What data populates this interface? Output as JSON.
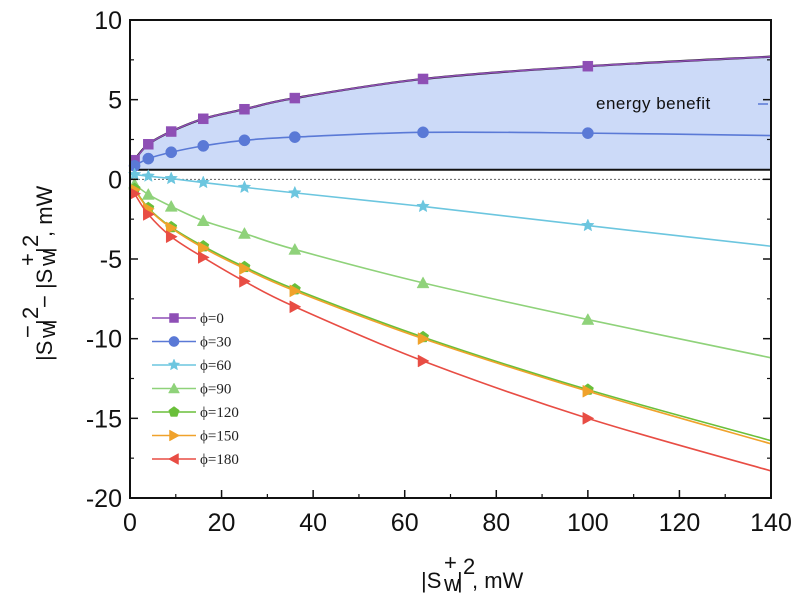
{
  "chart_data": {
    "type": "line",
    "title": "",
    "xlabel": "|S_w^+|^2, mW",
    "ylabel": "|S_w^-|^2 - |S_w^+|^2, mW",
    "xlim": [
      0,
      140
    ],
    "ylim": [
      -20,
      10
    ],
    "x_ticks": [
      0,
      20,
      40,
      60,
      80,
      100,
      120,
      140
    ],
    "y_ticks": [
      -20,
      -15,
      -10,
      -5,
      0,
      5,
      10
    ],
    "x_tick_labels": [
      "0",
      "20",
      "40",
      "60",
      "80",
      "100",
      "120",
      "140"
    ],
    "y_tick_labels": [
      "-20",
      "-15",
      "-10",
      "-5",
      "0",
      "5",
      "10"
    ],
    "grid": false,
    "legend_position": "lower-left",
    "annotation": "energy benefit",
    "shaded_region": {
      "label": "energy benefit",
      "color": "#ccdaf8",
      "baseline": 0.6
    },
    "series": [
      {
        "name": "ϕ=0",
        "color": "#8e4fb5",
        "marker": "square",
        "x": [
          1,
          4,
          9,
          16,
          25,
          36,
          64,
          100,
          140
        ],
        "y": [
          1.2,
          2.2,
          3.0,
          3.8,
          4.4,
          5.1,
          6.3,
          7.1,
          7.7
        ],
        "marker_x": [
          1,
          4,
          9,
          16,
          25,
          36,
          64,
          100
        ]
      },
      {
        "name": "ϕ=30",
        "color": "#5a79d6",
        "marker": "circle",
        "x": [
          1,
          4,
          9,
          16,
          25,
          36,
          64,
          100,
          140
        ],
        "y": [
          0.85,
          1.3,
          1.7,
          2.1,
          2.45,
          2.65,
          2.95,
          2.9,
          2.75
        ],
        "marker_x": [
          1,
          4,
          9,
          16,
          25,
          36,
          64,
          100
        ]
      },
      {
        "name": "ϕ=60",
        "color": "#6cc6df",
        "marker": "star",
        "x": [
          1,
          4,
          9,
          16,
          25,
          36,
          64,
          100,
          140
        ],
        "y": [
          0.3,
          0.2,
          0.05,
          -0.2,
          -0.5,
          -0.85,
          -1.7,
          -2.9,
          -4.2
        ],
        "marker_x": [
          1,
          4,
          9,
          16,
          25,
          36,
          64,
          100
        ]
      },
      {
        "name": "ϕ=90",
        "color": "#8fd27a",
        "marker": "triangle-up",
        "x": [
          1,
          4,
          9,
          16,
          25,
          36,
          64,
          100,
          140
        ],
        "y": [
          -0.3,
          -0.95,
          -1.7,
          -2.6,
          -3.4,
          -4.4,
          -6.5,
          -8.8,
          -11.2
        ],
        "marker_x": [
          1,
          4,
          9,
          16,
          25,
          36,
          64,
          100
        ]
      },
      {
        "name": "ϕ=120",
        "color": "#6abf3a",
        "marker": "pentagon",
        "x": [
          1,
          4,
          9,
          16,
          25,
          36,
          64,
          100,
          140
        ],
        "y": [
          -0.6,
          -1.8,
          -3.0,
          -4.2,
          -5.5,
          -6.9,
          -9.9,
          -13.2,
          -16.4
        ],
        "marker_x": [
          1,
          4,
          9,
          16,
          25,
          36,
          64,
          100
        ]
      },
      {
        "name": "ϕ=150",
        "color": "#f0a22b",
        "marker": "triangle-right",
        "x": [
          1,
          4,
          9,
          16,
          25,
          36,
          64,
          100,
          140
        ],
        "y": [
          -0.65,
          -1.85,
          -3.05,
          -4.3,
          -5.6,
          -7.0,
          -10.0,
          -13.3,
          -16.6
        ],
        "marker_x": [
          1,
          4,
          9,
          16,
          25,
          36,
          64,
          100
        ]
      },
      {
        "name": "ϕ=180",
        "color": "#e84d44",
        "marker": "triangle-right",
        "legend_marker": "triangle-left",
        "x": [
          1,
          4,
          9,
          16,
          25,
          36,
          64,
          100,
          140
        ],
        "y": [
          -0.9,
          -2.2,
          -3.6,
          -4.9,
          -6.4,
          -8.0,
          -11.4,
          -15.0,
          -18.3
        ],
        "marker_x": [
          1,
          4,
          9,
          16,
          25,
          36,
          64,
          100
        ]
      }
    ]
  }
}
